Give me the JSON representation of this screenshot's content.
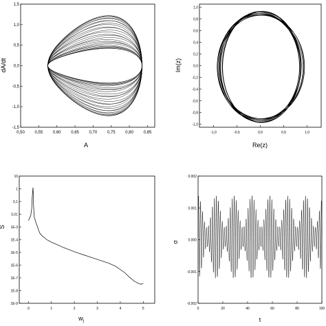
{
  "chart_data": [
    {
      "id": "phase",
      "type": "line",
      "xlabel": "A",
      "ylabel": "dA/dt",
      "xlim": [
        0.5,
        0.87
      ],
      "ylim": [
        -1.5,
        1.5
      ],
      "xticks": [
        "0,50",
        "0,55",
        "0,60",
        "0,65",
        "0,70",
        "0,75",
        "0,80",
        "0,85"
      ],
      "xtick_values": [
        0.5,
        0.55,
        0.6,
        0.65,
        0.7,
        0.75,
        0.8,
        0.85
      ],
      "yticks": [
        "-1,5",
        "-1,0",
        "-0,5",
        "0,0",
        "0,5",
        "1,0",
        "1,5"
      ],
      "ytick_values": [
        -1.5,
        -1.0,
        -0.5,
        0.0,
        0.5,
        1.0,
        1.5
      ],
      "series": [
        {
          "x_center": 0.705,
          "x_amplitude": 0.13,
          "y_amplitude": 0.78,
          "y_top_max": 1.27,
          "y_bottom_min": -1.25,
          "x_min": 0.545,
          "x_max": 0.835
        }
      ]
    },
    {
      "id": "complex",
      "type": "line",
      "xlabel": "Re(z)",
      "ylabel": "Im(z)",
      "xlim": [
        -1.3,
        1.3
      ],
      "ylim": [
        -1.05,
        1.05
      ],
      "xticks": [
        "-1,0",
        "-0,5",
        "0,0",
        "0,5",
        "1,0"
      ],
      "xtick_values": [
        -1.0,
        -0.5,
        0.0,
        0.5,
        1.0
      ],
      "yticks": [
        "-1,0",
        "-0,8",
        "-0,6",
        "-0,4",
        "-0,2",
        "0,0",
        "0,2",
        "0,4",
        "0,6",
        "0,8",
        "1,0"
      ],
      "ytick_values": [
        -1.0,
        -0.8,
        -0.6,
        -0.4,
        -0.2,
        0.0,
        0.2,
        0.4,
        0.6,
        0.8,
        1.0
      ],
      "series": [
        {
          "x_radius_min": 0.83,
          "x_radius_max": 0.92,
          "y_radius_min": 0.88,
          "y_radius_max": 0.95,
          "loops": 10
        }
      ]
    },
    {
      "id": "spectrum",
      "type": "line",
      "xlabel": "w",
      "xlabel_sub": "j",
      "ylabel": "S",
      "xlim": [
        -0.4,
        5.5
      ],
      "ylim_log10": [
        -9,
        1
      ],
      "xticks": [
        "0",
        "1",
        "2",
        "3",
        "4",
        "5"
      ],
      "xtick_values": [
        0,
        1,
        2,
        3,
        4,
        5
      ],
      "yticks": [
        "10",
        "1",
        "0,1",
        "0,01",
        "1E-3",
        "1E-4",
        "1E-5",
        "1E-6",
        "1E-7",
        "1E-8",
        "1E-9"
      ],
      "ytick_values_log10": [
        1,
        0,
        -1,
        -2,
        -3,
        -4,
        -5,
        -6,
        -7,
        -8,
        -9
      ],
      "series": [
        {
          "x": [
            0.0,
            0.05,
            0.1,
            0.14,
            0.17,
            0.2,
            0.22,
            0.25,
            0.3,
            0.35,
            0.4,
            0.45,
            0.5,
            0.6,
            0.7,
            0.8,
            0.9,
            1.0,
            1.2,
            1.5,
            1.8,
            2.0,
            2.5,
            3.0,
            3.5,
            3.8,
            4.0,
            4.2,
            4.4,
            4.6,
            4.8,
            4.9,
            5.0
          ],
          "y_log10": [
            -2.5,
            -2.3,
            -2.1,
            -1.6,
            -0.5,
            0.1,
            -1.2,
            -2.2,
            -2.5,
            -2.8,
            -3.0,
            -3.3,
            -3.5,
            -3.7,
            -3.85,
            -4.0,
            -4.1,
            -4.2,
            -4.35,
            -4.6,
            -4.8,
            -4.95,
            -5.25,
            -5.55,
            -5.85,
            -6.1,
            -6.35,
            -6.6,
            -6.95,
            -7.25,
            -7.45,
            -7.5,
            -7.45
          ]
        }
      ]
    },
    {
      "id": "signal",
      "type": "line",
      "xlabel": "t",
      "ylabel": "σ",
      "xlim": [
        0,
        100
      ],
      "ylim": [
        -0.002,
        0.002
      ],
      "xticks": [
        "0",
        "20",
        "40",
        "60",
        "80",
        "100"
      ],
      "xtick_values": [
        0,
        20,
        40,
        60,
        80,
        100
      ],
      "yticks": [
        "-0.002",
        "-0.001",
        "0.000",
        "0.001",
        "0.002"
      ],
      "ytick_values": [
        -0.002,
        -0.001,
        0.0,
        0.001,
        0.002
      ],
      "series": [
        {
          "carrier_period": 1.6,
          "envelope_period": 14.5,
          "amplitude_base": 0.0008,
          "amplitude_mod": 0.0005,
          "offset": 8e-05
        }
      ]
    }
  ]
}
